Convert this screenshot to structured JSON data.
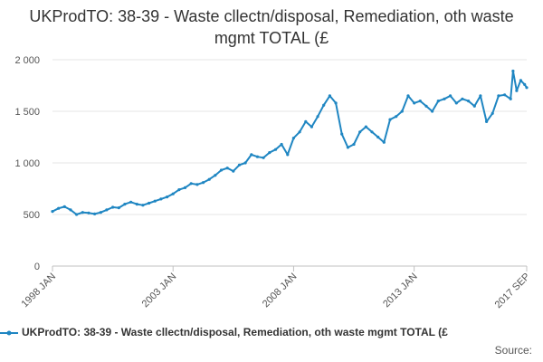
{
  "chart_data": {
    "type": "line",
    "title": "UKProdTO: 38-39 - Waste cllectn/disposal, Remediation, oth waste mgmt TOTAL (£",
    "xlabel": "",
    "ylabel": "",
    "ylim": [
      0,
      2000
    ],
    "y_ticks": [
      0,
      500,
      1000,
      1500,
      2000
    ],
    "y_tick_labels": [
      "0",
      "500",
      "1 000",
      "1 500",
      "2 000"
    ],
    "x_ticks": [
      {
        "label": "1998 JAN",
        "t": 1998.0
      },
      {
        "label": "2003 JAN",
        "t": 2003.0
      },
      {
        "label": "2008 JAN",
        "t": 2008.0
      },
      {
        "label": "2013 JAN",
        "t": 2013.0
      },
      {
        "label": "2017 SEP",
        "t": 2017.667
      }
    ],
    "x_range": [
      1998.0,
      2017.667
    ],
    "legend_position": "bottom",
    "color": "#1f86c2",
    "series": [
      {
        "name": "UKProdTO: 38-39 - Waste cllectn/disposal, Remediation, oth waste mgmt TOTAL (£",
        "points": [
          [
            1998.0,
            530
          ],
          [
            1998.25,
            560
          ],
          [
            1998.5,
            575
          ],
          [
            1998.75,
            545
          ],
          [
            1999.0,
            500
          ],
          [
            1999.25,
            520
          ],
          [
            1999.5,
            515
          ],
          [
            1999.75,
            505
          ],
          [
            2000.0,
            520
          ],
          [
            2000.25,
            545
          ],
          [
            2000.5,
            570
          ],
          [
            2000.75,
            565
          ],
          [
            2001.0,
            600
          ],
          [
            2001.25,
            620
          ],
          [
            2001.5,
            600
          ],
          [
            2001.75,
            590
          ],
          [
            2002.0,
            610
          ],
          [
            2002.25,
            630
          ],
          [
            2002.5,
            650
          ],
          [
            2002.75,
            670
          ],
          [
            2003.0,
            700
          ],
          [
            2003.25,
            740
          ],
          [
            2003.5,
            760
          ],
          [
            2003.75,
            800
          ],
          [
            2004.0,
            790
          ],
          [
            2004.25,
            810
          ],
          [
            2004.5,
            840
          ],
          [
            2004.75,
            880
          ],
          [
            2005.0,
            930
          ],
          [
            2005.25,
            950
          ],
          [
            2005.5,
            920
          ],
          [
            2005.75,
            980
          ],
          [
            2006.0,
            1000
          ],
          [
            2006.25,
            1080
          ],
          [
            2006.5,
            1060
          ],
          [
            2006.75,
            1050
          ],
          [
            2007.0,
            1100
          ],
          [
            2007.25,
            1130
          ],
          [
            2007.5,
            1180
          ],
          [
            2007.75,
            1080
          ],
          [
            2008.0,
            1240
          ],
          [
            2008.25,
            1300
          ],
          [
            2008.5,
            1400
          ],
          [
            2008.75,
            1350
          ],
          [
            2009.0,
            1450
          ],
          [
            2009.25,
            1560
          ],
          [
            2009.5,
            1650
          ],
          [
            2009.75,
            1580
          ],
          [
            2010.0,
            1280
          ],
          [
            2010.25,
            1150
          ],
          [
            2010.5,
            1180
          ],
          [
            2010.75,
            1300
          ],
          [
            2011.0,
            1350
          ],
          [
            2011.25,
            1300
          ],
          [
            2011.5,
            1250
          ],
          [
            2011.75,
            1200
          ],
          [
            2012.0,
            1420
          ],
          [
            2012.25,
            1450
          ],
          [
            2012.5,
            1500
          ],
          [
            2012.75,
            1650
          ],
          [
            2013.0,
            1580
          ],
          [
            2013.25,
            1600
          ],
          [
            2013.5,
            1550
          ],
          [
            2013.75,
            1500
          ],
          [
            2014.0,
            1600
          ],
          [
            2014.25,
            1620
          ],
          [
            2014.5,
            1650
          ],
          [
            2014.75,
            1580
          ],
          [
            2015.0,
            1620
          ],
          [
            2015.25,
            1600
          ],
          [
            2015.5,
            1550
          ],
          [
            2015.75,
            1650
          ],
          [
            2016.0,
            1400
          ],
          [
            2016.25,
            1480
          ],
          [
            2016.5,
            1650
          ],
          [
            2016.75,
            1660
          ],
          [
            2017.0,
            1620
          ],
          [
            2017.1,
            1890
          ],
          [
            2017.25,
            1700
          ],
          [
            2017.42,
            1800
          ],
          [
            2017.58,
            1760
          ],
          [
            2017.667,
            1730
          ]
        ]
      }
    ]
  },
  "source_label": "Source:"
}
